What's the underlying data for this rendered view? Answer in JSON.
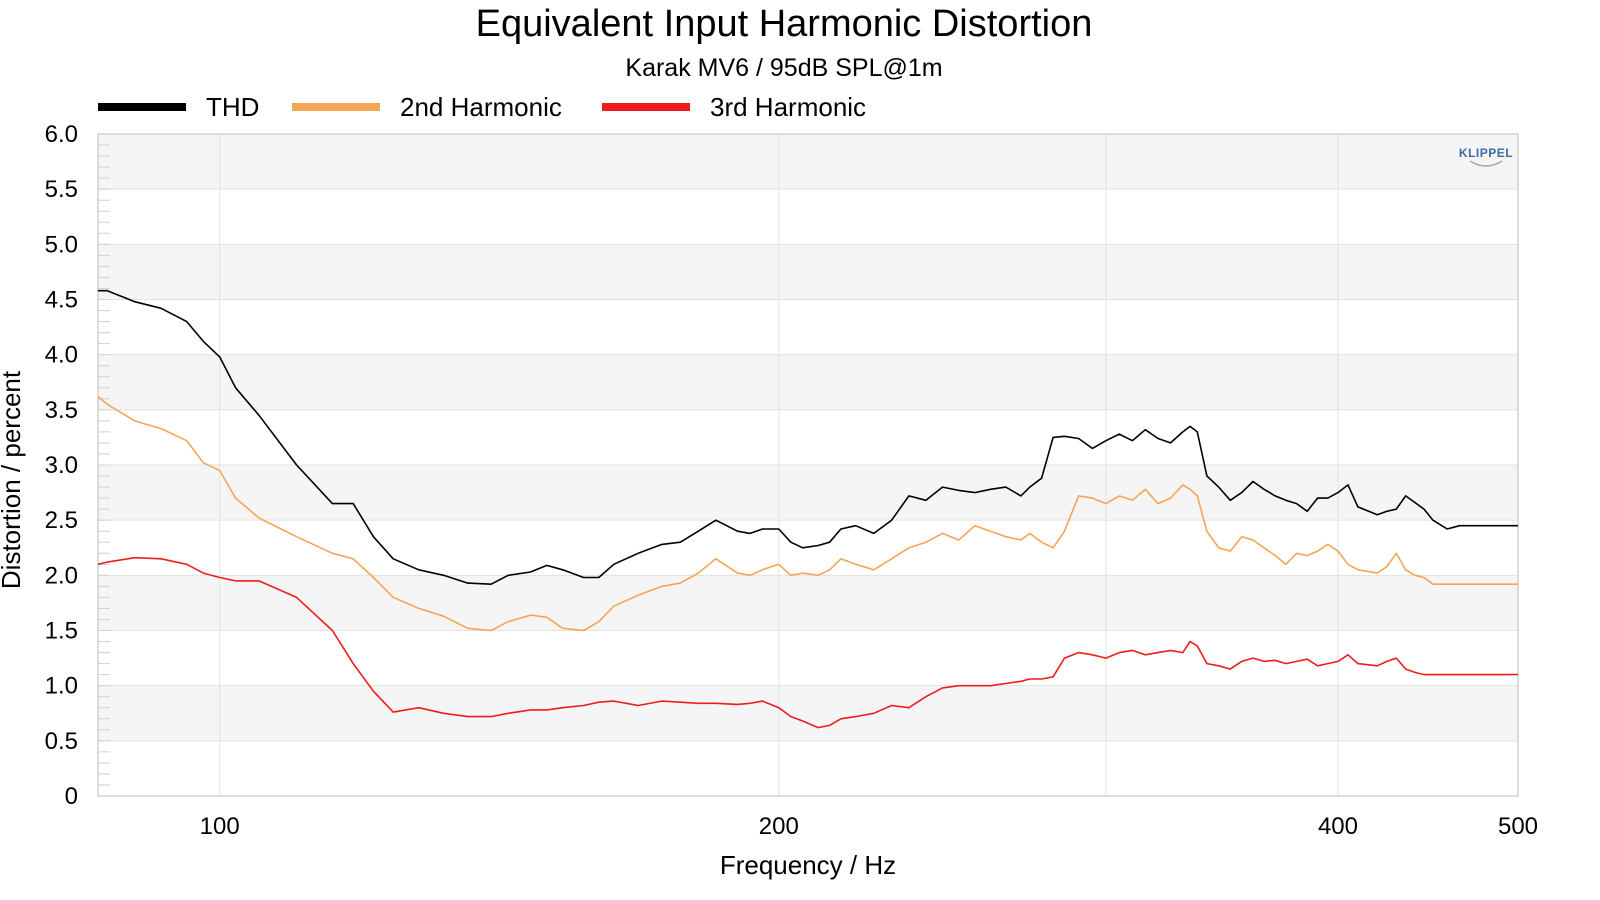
{
  "chart_data": {
    "type": "line",
    "title": "Equivalent Input Harmonic Distortion",
    "subtitle": "Karak MV6 / 95dB SPL@1m",
    "xlabel": "Frequency / Hz",
    "ylabel": "Distortion / percent",
    "x_scale": "log",
    "xlim": [
      86,
      500
    ],
    "ylim": [
      0,
      6
    ],
    "x_ticks": [
      100,
      200,
      400,
      500
    ],
    "y_ticks": [
      0,
      0.5,
      1.0,
      1.5,
      2.0,
      2.5,
      3.0,
      3.5,
      4.0,
      4.5,
      5.0,
      5.5,
      6.0
    ],
    "y_tick_labels": [
      "0",
      "0.5",
      "1.0",
      "1.5",
      "2.0",
      "2.5",
      "3.0",
      "3.5",
      "4.0",
      "4.5",
      "5.0",
      "5.5",
      "6.0"
    ],
    "grid": true,
    "legend_position": "top",
    "logo_text": "KLIPPEL",
    "series": [
      {
        "name": "THD",
        "color": "#000000",
        "x": [
          86,
          87,
          90,
          93,
          96,
          98,
          100,
          102,
          105,
          110,
          115,
          118,
          121,
          124,
          128,
          132,
          136,
          140,
          143,
          147,
          150,
          153,
          157,
          160,
          163,
          168,
          173,
          177,
          181,
          185,
          190,
          193,
          196,
          200,
          203,
          206,
          210,
          213,
          216,
          220,
          225,
          230,
          235,
          240,
          245,
          250,
          255,
          260,
          265,
          270,
          273,
          277,
          281,
          285,
          290,
          295,
          300,
          305,
          310,
          315,
          320,
          325,
          330,
          333,
          336,
          340,
          345,
          350,
          355,
          360,
          365,
          370,
          375,
          380,
          385,
          390,
          395,
          400,
          405,
          410,
          420,
          425,
          430,
          435,
          440,
          445,
          450,
          458,
          465,
          470,
          475,
          480,
          485,
          490,
          495,
          500
        ],
        "y": [
          4.58,
          4.58,
          4.48,
          4.42,
          4.3,
          4.12,
          3.98,
          3.7,
          3.45,
          3.0,
          2.65,
          2.65,
          2.35,
          2.15,
          2.05,
          2.0,
          1.93,
          1.92,
          2.0,
          2.03,
          2.09,
          2.05,
          1.98,
          1.98,
          2.1,
          2.2,
          2.28,
          2.3,
          2.4,
          2.5,
          2.4,
          2.38,
          2.42,
          2.42,
          2.3,
          2.25,
          2.27,
          2.3,
          2.42,
          2.45,
          2.38,
          2.5,
          2.72,
          2.68,
          2.8,
          2.77,
          2.75,
          2.78,
          2.8,
          2.72,
          2.8,
          2.88,
          3.25,
          3.26,
          3.24,
          3.15,
          3.22,
          3.28,
          3.22,
          3.32,
          3.24,
          3.2,
          3.3,
          3.35,
          3.3,
          2.9,
          2.8,
          2.68,
          2.75,
          2.85,
          2.78,
          2.72,
          2.68,
          2.65,
          2.58,
          2.7,
          2.7,
          2.75,
          2.82,
          2.62,
          2.55,
          2.58,
          2.6,
          2.72,
          2.66,
          2.6,
          2.5,
          2.42,
          2.45,
          2.45,
          2.45,
          2.45,
          2.45,
          2.45,
          2.45,
          2.45
        ],
        "note_y_end": 2.45
      },
      {
        "name": "2nd Harmonic",
        "color": "#f5a556",
        "x": [
          86,
          87,
          90,
          93,
          96,
          98,
          100,
          102,
          105,
          110,
          115,
          118,
          121,
          124,
          128,
          132,
          136,
          140,
          143,
          147,
          150,
          153,
          157,
          160,
          163,
          168,
          173,
          177,
          181,
          185,
          190,
          193,
          196,
          200,
          203,
          206,
          210,
          213,
          216,
          220,
          225,
          230,
          235,
          240,
          245,
          250,
          255,
          260,
          265,
          270,
          273,
          277,
          281,
          285,
          290,
          295,
          300,
          305,
          310,
          315,
          320,
          325,
          330,
          333,
          336,
          340,
          345,
          350,
          355,
          360,
          365,
          370,
          375,
          380,
          385,
          390,
          395,
          400,
          405,
          410,
          420,
          425,
          430,
          435,
          440,
          445,
          450,
          458,
          465,
          470,
          475,
          480,
          485,
          490,
          495,
          500
        ],
        "y": [
          3.62,
          3.55,
          3.4,
          3.33,
          3.22,
          3.02,
          2.95,
          2.7,
          2.52,
          2.35,
          2.2,
          2.15,
          1.98,
          1.8,
          1.7,
          1.63,
          1.52,
          1.5,
          1.58,
          1.64,
          1.62,
          1.52,
          1.5,
          1.58,
          1.72,
          1.82,
          1.9,
          1.93,
          2.02,
          2.15,
          2.02,
          2.0,
          2.05,
          2.1,
          2.0,
          2.02,
          2.0,
          2.05,
          2.15,
          2.1,
          2.05,
          2.15,
          2.25,
          2.3,
          2.38,
          2.32,
          2.45,
          2.4,
          2.35,
          2.32,
          2.38,
          2.3,
          2.25,
          2.4,
          2.72,
          2.7,
          2.65,
          2.72,
          2.68,
          2.78,
          2.65,
          2.7,
          2.82,
          2.78,
          2.72,
          2.4,
          2.25,
          2.22,
          2.35,
          2.32,
          2.25,
          2.18,
          2.1,
          2.2,
          2.18,
          2.22,
          2.28,
          2.22,
          2.1,
          2.05,
          2.02,
          2.08,
          2.2,
          2.05,
          2.0,
          1.98,
          1.92,
          1.92,
          1.92,
          1.92,
          1.92,
          1.92,
          1.92,
          1.92,
          1.92,
          1.92
        ]
      },
      {
        "name": "3rd Harmonic",
        "color": "#ee1c1c",
        "x": [
          86,
          87,
          90,
          93,
          96,
          98,
          100,
          102,
          105,
          110,
          115,
          118,
          121,
          124,
          128,
          132,
          136,
          140,
          143,
          147,
          150,
          153,
          157,
          160,
          163,
          168,
          173,
          177,
          181,
          185,
          190,
          193,
          196,
          200,
          203,
          206,
          210,
          213,
          216,
          220,
          225,
          230,
          235,
          240,
          245,
          250,
          255,
          260,
          265,
          270,
          273,
          277,
          281,
          285,
          290,
          295,
          300,
          305,
          310,
          315,
          320,
          325,
          330,
          333,
          336,
          340,
          345,
          350,
          355,
          360,
          365,
          370,
          375,
          380,
          385,
          390,
          395,
          400,
          405,
          410,
          420,
          425,
          430,
          435,
          440,
          445,
          450,
          458,
          465,
          470,
          475,
          480,
          485,
          490,
          495,
          500
        ],
        "y": [
          2.1,
          2.12,
          2.16,
          2.15,
          2.1,
          2.02,
          1.98,
          1.95,
          1.95,
          1.8,
          1.5,
          1.2,
          0.95,
          0.76,
          0.8,
          0.75,
          0.72,
          0.72,
          0.75,
          0.78,
          0.78,
          0.8,
          0.82,
          0.85,
          0.86,
          0.82,
          0.86,
          0.85,
          0.84,
          0.84,
          0.83,
          0.84,
          0.86,
          0.8,
          0.72,
          0.68,
          0.62,
          0.64,
          0.7,
          0.72,
          0.75,
          0.82,
          0.8,
          0.9,
          0.98,
          1.0,
          1.0,
          1.0,
          1.02,
          1.04,
          1.06,
          1.06,
          1.08,
          1.25,
          1.3,
          1.28,
          1.25,
          1.3,
          1.32,
          1.28,
          1.3,
          1.32,
          1.3,
          1.4,
          1.36,
          1.2,
          1.18,
          1.15,
          1.22,
          1.25,
          1.22,
          1.23,
          1.2,
          1.22,
          1.24,
          1.18,
          1.2,
          1.22,
          1.28,
          1.2,
          1.18,
          1.22,
          1.25,
          1.15,
          1.12,
          1.1,
          1.1,
          1.1,
          1.1,
          1.1,
          1.1,
          1.1,
          1.1,
          1.1,
          1.1,
          1.1
        ]
      }
    ]
  }
}
